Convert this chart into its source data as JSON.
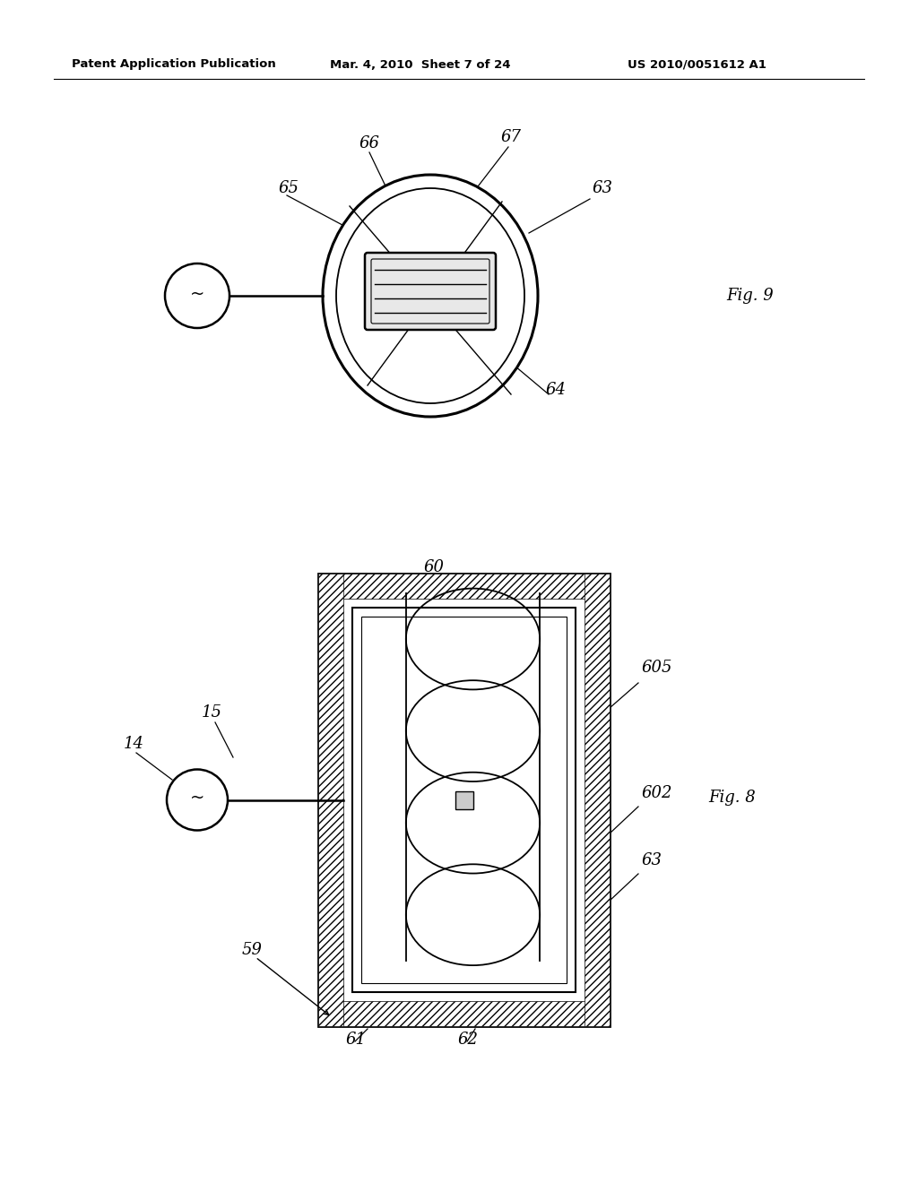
{
  "background_color": "#ffffff",
  "header_text": "Patent Application Publication",
  "header_date": "Mar. 4, 2010  Sheet 7 of 24",
  "header_patent": "US 2010/0051612 A1",
  "fig9_label": "Fig. 9",
  "fig8_label": "Fig. 8"
}
